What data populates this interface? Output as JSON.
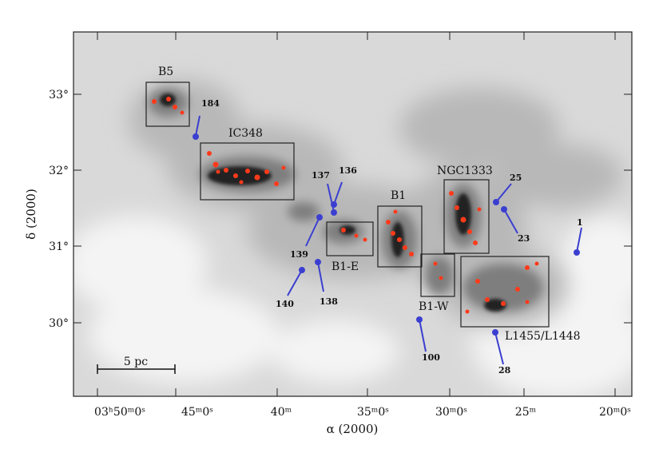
{
  "axes": {
    "xlabel": "α (2000)",
    "ylabel": "δ (2000)",
    "xticks": [
      "03ʰ50ᵐ0ˢ",
      "45ᵐ0ˢ",
      "40ᵐ",
      "35ᵐ0ˢ",
      "30ᵐ0ˢ",
      "25ᵐ",
      "20ᵐ0ˢ"
    ],
    "yticks": [
      "33°",
      "32°",
      "31°",
      "30°"
    ]
  },
  "scale_bar": {
    "label": "5 pc"
  },
  "regions": [
    {
      "name": "B5"
    },
    {
      "name": "IC348"
    },
    {
      "name": "B1-E"
    },
    {
      "name": "B1"
    },
    {
      "name": "NGC1333"
    },
    {
      "name": "B1-W"
    },
    {
      "name": "L1455/L1448"
    }
  ],
  "markers": [
    "184",
    "137",
    "136",
    "139",
    "140",
    "138",
    "25",
    "23",
    "1",
    "100",
    "28"
  ],
  "colors": {
    "cloud": "#6a6a6a",
    "clumps": "#ff3a1a",
    "markers": "#3b3fd0",
    "frame": "#222222"
  }
}
